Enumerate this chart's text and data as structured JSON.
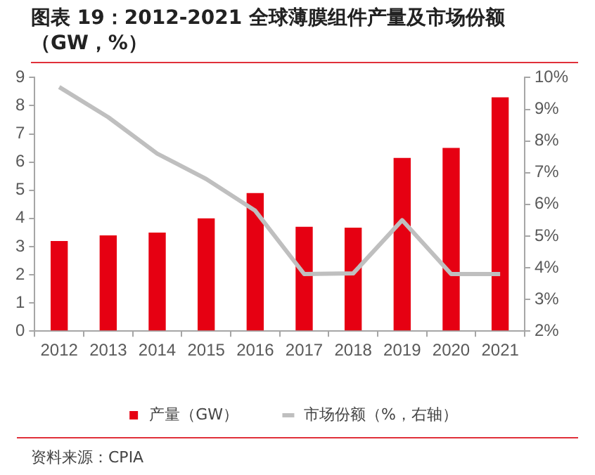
{
  "chart_data": {
    "type": "bar",
    "title": "图表 19：2012-2021 全球薄膜组件产量及市场份额（GW，%）",
    "categories": [
      "2012",
      "2013",
      "2014",
      "2015",
      "2016",
      "2017",
      "2018",
      "2019",
      "2020",
      "2021"
    ],
    "series": [
      {
        "name": "产量（GW）",
        "color": "#e60012",
        "values": [
          3.2,
          3.4,
          3.5,
          4.0,
          4.9,
          3.7,
          3.67,
          6.15,
          6.5,
          8.3
        ]
      },
      {
        "name": "市场份额（%，右轴）",
        "type": "line",
        "axis": "y2",
        "color": "#bfbfbf",
        "values": [
          9.7,
          8.75,
          7.6,
          6.8,
          5.8,
          3.8,
          3.82,
          5.5,
          3.8,
          3.8
        ]
      }
    ],
    "ylim": [
      0,
      9
    ],
    "yticks": [
      0,
      1,
      2,
      3,
      4,
      5,
      6,
      7,
      8,
      9
    ],
    "y2lim": [
      2,
      10
    ],
    "y2ticks": [
      {
        "value": 2,
        "label": "2%"
      },
      {
        "value": 3,
        "label": "3%"
      },
      {
        "value": 4,
        "label": "4%"
      },
      {
        "value": 5,
        "label": "5%"
      },
      {
        "value": 6,
        "label": "6%"
      },
      {
        "value": 7,
        "label": "7%"
      },
      {
        "value": 8,
        "label": "8%"
      },
      {
        "value": 9,
        "label": "9%"
      },
      {
        "value": 10,
        "label": "10%"
      }
    ],
    "legend": "bottom",
    "grid": false,
    "marker": "none",
    "annotations": [
      "资料来源：CPIA"
    ]
  }
}
